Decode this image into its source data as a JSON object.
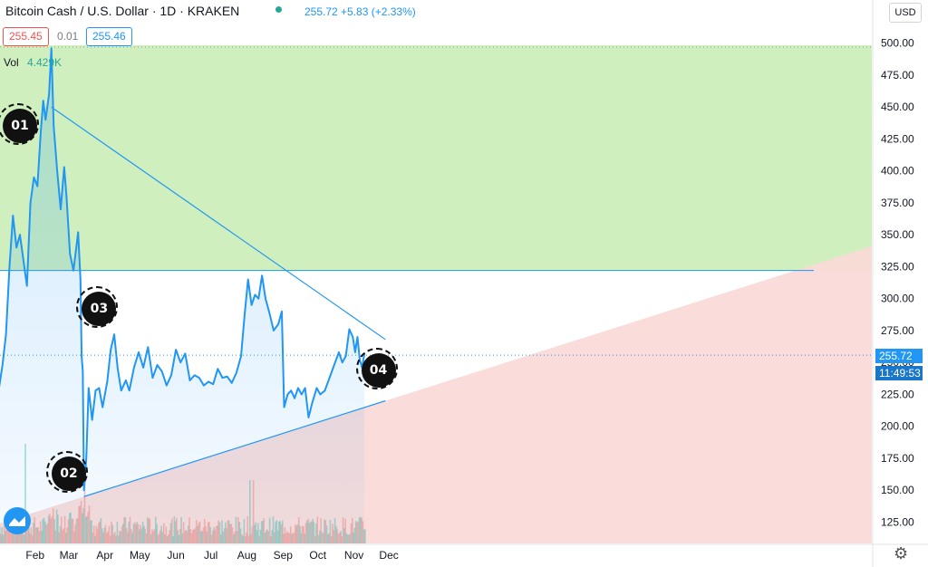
{
  "header": {
    "title": "Bitcoin Cash / U.S. Dollar · 1D · KRAKEN",
    "price_line": "255.72 +5.83 (+2.33%)",
    "bid": "255.45",
    "spread": "0.01",
    "ask": "255.46",
    "volume_label": "Vol",
    "volume_value": "4.429K",
    "currency_button": "USD"
  },
  "price_tag": {
    "price": "255.72",
    "countdown": "11:49:53"
  },
  "markers": [
    {
      "label": "01",
      "x": "Jan 19",
      "y": 435
    },
    {
      "label": "02",
      "x": "Mar 1",
      "y": 163
    },
    {
      "label": "03",
      "x": "Mar 27",
      "y": 292
    },
    {
      "label": "04",
      "x": "Nov 22",
      "y": 244
    }
  ],
  "colors": {
    "line": "#2196f3",
    "resistance_zone": "#c8ecb4",
    "support_zone": "#fad9d6",
    "vol_up": "#66bfb3",
    "vol_down": "#f28b87",
    "marker": "#111111"
  },
  "chart_data": {
    "type": "area",
    "title": "Bitcoin Cash / U.S. Dollar · 1D · KRAKEN",
    "x_unit": "date (2020)",
    "ylim": [
      100,
      500
    ],
    "y_ticks": [
      "125.00",
      "150.00",
      "175.00",
      "200.00",
      "225.00",
      "250.00",
      "275.00",
      "300.00",
      "325.00",
      "350.00",
      "375.00",
      "400.00",
      "425.00",
      "450.00",
      "475.00",
      "500.00"
    ],
    "x_ticks": [
      "Feb",
      "Mar",
      "Apr",
      "May",
      "Jun",
      "Jul",
      "Aug",
      "Sep",
      "Oct",
      "Nov",
      "Dec"
    ],
    "series": [
      {
        "points": [
          [
            "Jan 1",
            230
          ],
          [
            "Jan 4",
            248
          ],
          [
            "Jan 7",
            272
          ],
          [
            "Jan 10",
            325
          ],
          [
            "Jan 13",
            365
          ],
          [
            "Jan 16",
            340
          ],
          [
            "Jan 19",
            350
          ],
          [
            "Jan 22",
            330
          ],
          [
            "Jan 25",
            310
          ],
          [
            "Jan 28",
            375
          ],
          [
            "Jan 31",
            395
          ],
          [
            "Feb 3",
            388
          ],
          [
            "Feb 6",
            432
          ],
          [
            "Feb 8",
            455
          ],
          [
            "Feb 10",
            440
          ],
          [
            "Feb 13",
            460
          ],
          [
            "Feb 15",
            496
          ],
          [
            "Feb 17",
            435
          ],
          [
            "Feb 20",
            400
          ],
          [
            "Feb 23",
            370
          ],
          [
            "Feb 26",
            403
          ],
          [
            "Feb 28",
            380
          ],
          [
            "Mar 2",
            335
          ],
          [
            "Mar 5",
            322
          ],
          [
            "Mar 9",
            352
          ],
          [
            "Mar 11",
            315
          ],
          [
            "Mar 12",
            255
          ],
          [
            "Mar 13",
            243
          ],
          [
            "Mar 14",
            150
          ],
          [
            "Mar 16",
            175
          ],
          [
            "Mar 18",
            230
          ],
          [
            "Mar 21",
            205
          ],
          [
            "Mar 24",
            228
          ],
          [
            "Mar 27",
            230
          ],
          [
            "Mar 30",
            215
          ],
          [
            "Apr 3",
            235
          ],
          [
            "Apr 6",
            260
          ],
          [
            "Apr 9",
            272
          ],
          [
            "Apr 12",
            245
          ],
          [
            "Apr 15",
            228
          ],
          [
            "Apr 19",
            236
          ],
          [
            "Apr 22",
            228
          ],
          [
            "Apr 26",
            246
          ],
          [
            "Apr 30",
            258
          ],
          [
            "May 4",
            246
          ],
          [
            "May 8",
            262
          ],
          [
            "May 12",
            238
          ],
          [
            "May 16",
            248
          ],
          [
            "May 20",
            243
          ],
          [
            "May 24",
            232
          ],
          [
            "May 28",
            240
          ],
          [
            "Jun 1",
            260
          ],
          [
            "Jun 5",
            250
          ],
          [
            "Jun 9",
            257
          ],
          [
            "Jun 13",
            236
          ],
          [
            "Jun 17",
            240
          ],
          [
            "Jun 21",
            238
          ],
          [
            "Jun 25",
            232
          ],
          [
            "Jun 29",
            235
          ],
          [
            "Jul 3",
            233
          ],
          [
            "Jul 7",
            245
          ],
          [
            "Jul 11",
            238
          ],
          [
            "Jul 15",
            239
          ],
          [
            "Jul 19",
            234
          ],
          [
            "Jul 23",
            242
          ],
          [
            "Jul 27",
            255
          ],
          [
            "Jul 30",
            287
          ],
          [
            "Aug 2",
            315
          ],
          [
            "Aug 5",
            295
          ],
          [
            "Aug 8",
            303
          ],
          [
            "Aug 11",
            300
          ],
          [
            "Aug 14",
            318
          ],
          [
            "Aug 17",
            300
          ],
          [
            "Aug 20",
            290
          ],
          [
            "Aug 24",
            275
          ],
          [
            "Aug 28",
            280
          ],
          [
            "Aug 31",
            290
          ],
          [
            "Sep 2",
            215
          ],
          [
            "Sep 5",
            225
          ],
          [
            "Sep 8",
            228
          ],
          [
            "Sep 11",
            222
          ],
          [
            "Sep 14",
            230
          ],
          [
            "Sep 17",
            225
          ],
          [
            "Sep 20",
            230
          ],
          [
            "Sep 23",
            207
          ],
          [
            "Sep 26",
            218
          ],
          [
            "Sep 30",
            230
          ],
          [
            "Oct 3",
            225
          ],
          [
            "Oct 7",
            228
          ],
          [
            "Oct 11",
            238
          ],
          [
            "Oct 15",
            248
          ],
          [
            "Oct 19",
            258
          ],
          [
            "Oct 22",
            250
          ],
          [
            "Oct 25",
            255
          ],
          [
            "Oct 28",
            276
          ],
          [
            "Oct 31",
            270
          ],
          [
            "Nov 2",
            258
          ],
          [
            "Nov 4",
            270
          ],
          [
            "Nov 6",
            252
          ],
          [
            "Nov 8",
            246
          ],
          [
            "Nov 10",
            257
          ]
        ]
      }
    ],
    "annotations": {
      "horizontal_line": 322,
      "resistance_line": {
        "from": [
          "Feb 15",
          450
        ],
        "to": [
          "Nov 28",
          268
        ]
      },
      "support_line": {
        "from": [
          "Mar 14",
          145
        ],
        "to": [
          "Nov 28",
          220
        ]
      },
      "last_price": 255.72
    },
    "volume": {
      "label": "Vol",
      "last": "4.429K"
    }
  }
}
